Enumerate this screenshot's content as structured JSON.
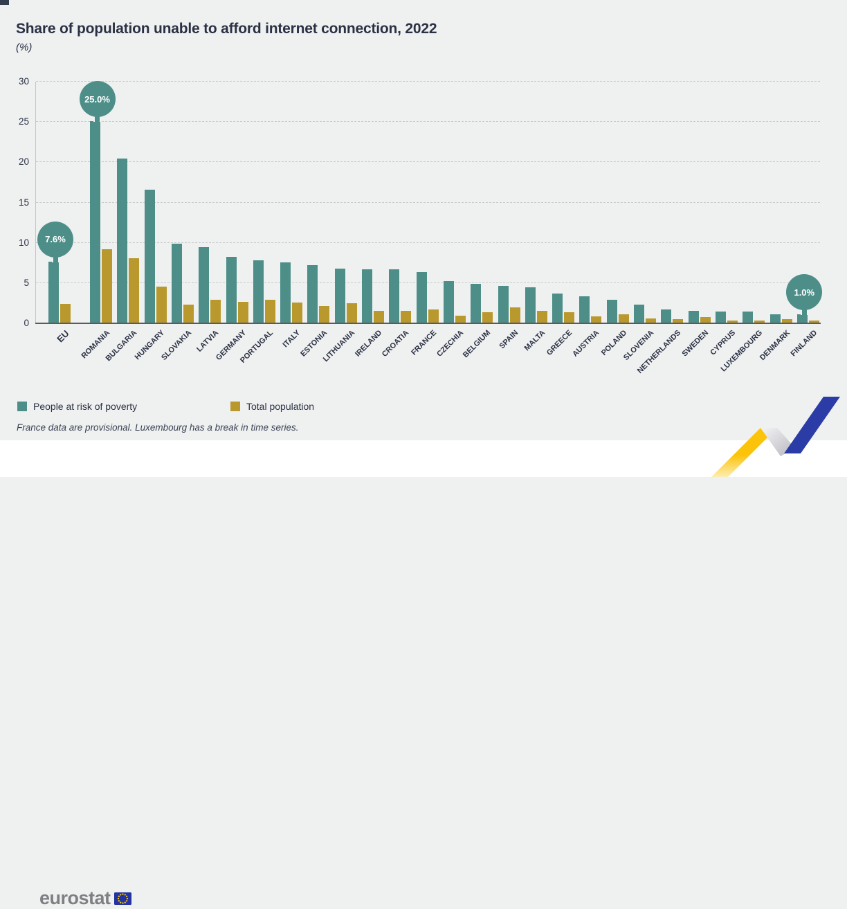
{
  "header": {
    "title": "Share of population unable to afford internet connection, 2022",
    "subtitle": "(%)"
  },
  "chart_data": {
    "type": "bar",
    "title": "Share of population unable to afford internet connection, 2022",
    "unit": "%",
    "categories": [
      "EU",
      "ROMANIA",
      "BULGARIA",
      "HUNGARY",
      "SLOVAKIA",
      "LATVIA",
      "GERMANY",
      "PORTUGAL",
      "ITALY",
      "ESTONIA",
      "LITHUANIA",
      "IRELAND",
      "CROATIA",
      "FRANCE",
      "CZECHIA",
      "BELGIUM",
      "SPAIN",
      "MALTA",
      "GREECE",
      "AUSTRIA",
      "POLAND",
      "SLOVENIA",
      "NETHERLANDS",
      "SWEDEN",
      "CYPRUS",
      "LUXEMBOURG",
      "DENMARK",
      "FINLAND"
    ],
    "series": [
      {
        "name": "People at risk of poverty",
        "color": "#4d8f88",
        "values": [
          7.6,
          25.0,
          20.4,
          16.5,
          9.8,
          9.4,
          8.2,
          7.7,
          7.5,
          7.1,
          6.7,
          6.6,
          6.6,
          6.3,
          5.2,
          4.8,
          4.6,
          4.4,
          3.6,
          3.3,
          2.8,
          2.2,
          1.6,
          1.5,
          1.4,
          1.4,
          1.0,
          1.0
        ]
      },
      {
        "name": "Total population",
        "color": "#b9992d",
        "values": [
          2.3,
          9.1,
          8.0,
          4.5,
          2.2,
          2.8,
          2.6,
          2.8,
          2.5,
          2.1,
          2.4,
          1.5,
          1.5,
          1.6,
          0.9,
          1.3,
          1.9,
          1.5,
          1.3,
          0.8,
          1.0,
          0.5,
          0.4,
          0.7,
          0.3,
          0.3,
          0.4,
          0.3
        ]
      }
    ],
    "ylim": [
      0,
      30
    ],
    "yticks": [
      0,
      5,
      10,
      15,
      20,
      25,
      30
    ],
    "grid": "horizontal-dashed",
    "legend_position": "bottom-left",
    "callouts": [
      {
        "category": "EU",
        "label": "7.6%"
      },
      {
        "category": "ROMANIA",
        "label": "25.0%"
      },
      {
        "category": "FINLAND",
        "label": "1.0%"
      }
    ]
  },
  "footnote": "France data are provisional. Luxembourg has a break in time series.",
  "footer": {
    "logo_text": "eurostat"
  },
  "colors": {
    "background": "#eff0f0",
    "footer_background": "#ffffff",
    "series_risk": "#4d8f88",
    "series_total": "#b9992d",
    "text_dark": "#2b3144",
    "axis_line": "#595b5e",
    "gridline": "#c9cbcc",
    "logo_gray": "#7e8083",
    "flag_blue": "#2433a0",
    "star_yellow": "#ffd617",
    "ribbon_yellow": "#fcc30b",
    "ribbon_blue": "#2b3ca6"
  }
}
